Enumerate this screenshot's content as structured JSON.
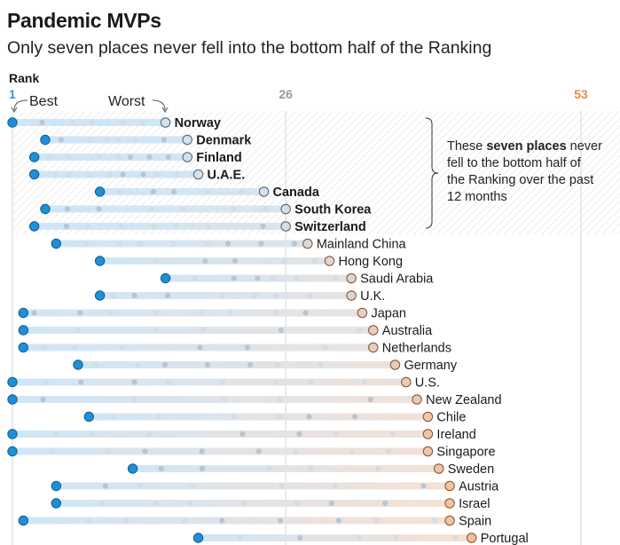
{
  "title": "Pandemic MVPs",
  "subtitle": "Only seven places never fell into the bottom half of the Ranking",
  "axis": {
    "label": "Rank",
    "ticks": [
      1,
      26,
      53
    ],
    "best_label": "Best",
    "worst_label": "Worst"
  },
  "annotation": {
    "lines": [
      [
        "These ",
        "seven places",
        " never"
      ],
      [
        "fell to the bottom half of",
        "",
        ""
      ],
      [
        "the Ranking over the past",
        "",
        ""
      ],
      [
        "12 months",
        "",
        ""
      ]
    ]
  },
  "colors": {
    "best_blue": "#1f8fd6",
    "light_blue": "#cfe6f7",
    "orange": "#e8894a",
    "light_orange": "#fde6d6",
    "gray_tick": "#999999",
    "tick_blue": "#2b9be0",
    "tick_orange": "#e8894a"
  },
  "chart_data": {
    "type": "dot-range",
    "x_axis": "rank (1 = best, 53 = worst)",
    "xlim": [
      1,
      53
    ],
    "rows": [
      {
        "name": "Norway",
        "best": 1,
        "worst": 15,
        "bold": true
      },
      {
        "name": "Denmark",
        "best": 4,
        "worst": 17,
        "bold": true
      },
      {
        "name": "Finland",
        "best": 3,
        "worst": 17,
        "bold": true
      },
      {
        "name": "U.A.E.",
        "best": 3,
        "worst": 18,
        "bold": true
      },
      {
        "name": "Canada",
        "best": 9,
        "worst": 24,
        "bold": true
      },
      {
        "name": "South Korea",
        "best": 4,
        "worst": 26,
        "bold": true
      },
      {
        "name": "Switzerland",
        "best": 3,
        "worst": 26,
        "bold": true
      },
      {
        "name": "Mainland China",
        "best": 5,
        "worst": 28,
        "bold": false
      },
      {
        "name": "Hong Kong",
        "best": 9,
        "worst": 30,
        "bold": false
      },
      {
        "name": "Saudi Arabia",
        "best": 15,
        "worst": 32,
        "bold": false
      },
      {
        "name": "U.K.",
        "best": 9,
        "worst": 32,
        "bold": false
      },
      {
        "name": "Japan",
        "best": 2,
        "worst": 33,
        "bold": false
      },
      {
        "name": "Australia",
        "best": 2,
        "worst": 34,
        "bold": false
      },
      {
        "name": "Netherlands",
        "best": 2,
        "worst": 34,
        "bold": false
      },
      {
        "name": "Germany",
        "best": 7,
        "worst": 36,
        "bold": false
      },
      {
        "name": "U.S.",
        "best": 1,
        "worst": 37,
        "bold": false
      },
      {
        "name": "New Zealand",
        "best": 1,
        "worst": 38,
        "bold": false
      },
      {
        "name": "Chile",
        "best": 8,
        "worst": 39,
        "bold": false
      },
      {
        "name": "Ireland",
        "best": 1,
        "worst": 39,
        "bold": false
      },
      {
        "name": "Singapore",
        "best": 1,
        "worst": 39,
        "bold": false
      },
      {
        "name": "Sweden",
        "best": 12,
        "worst": 40,
        "bold": false
      },
      {
        "name": "Austria",
        "best": 5,
        "worst": 41,
        "bold": false
      },
      {
        "name": "Israel",
        "best": 5,
        "worst": 41,
        "bold": false
      },
      {
        "name": "Spain",
        "best": 2,
        "worst": 41,
        "bold": false
      },
      {
        "name": "Portugal",
        "best": 18,
        "worst": 43,
        "bold": false
      }
    ]
  }
}
